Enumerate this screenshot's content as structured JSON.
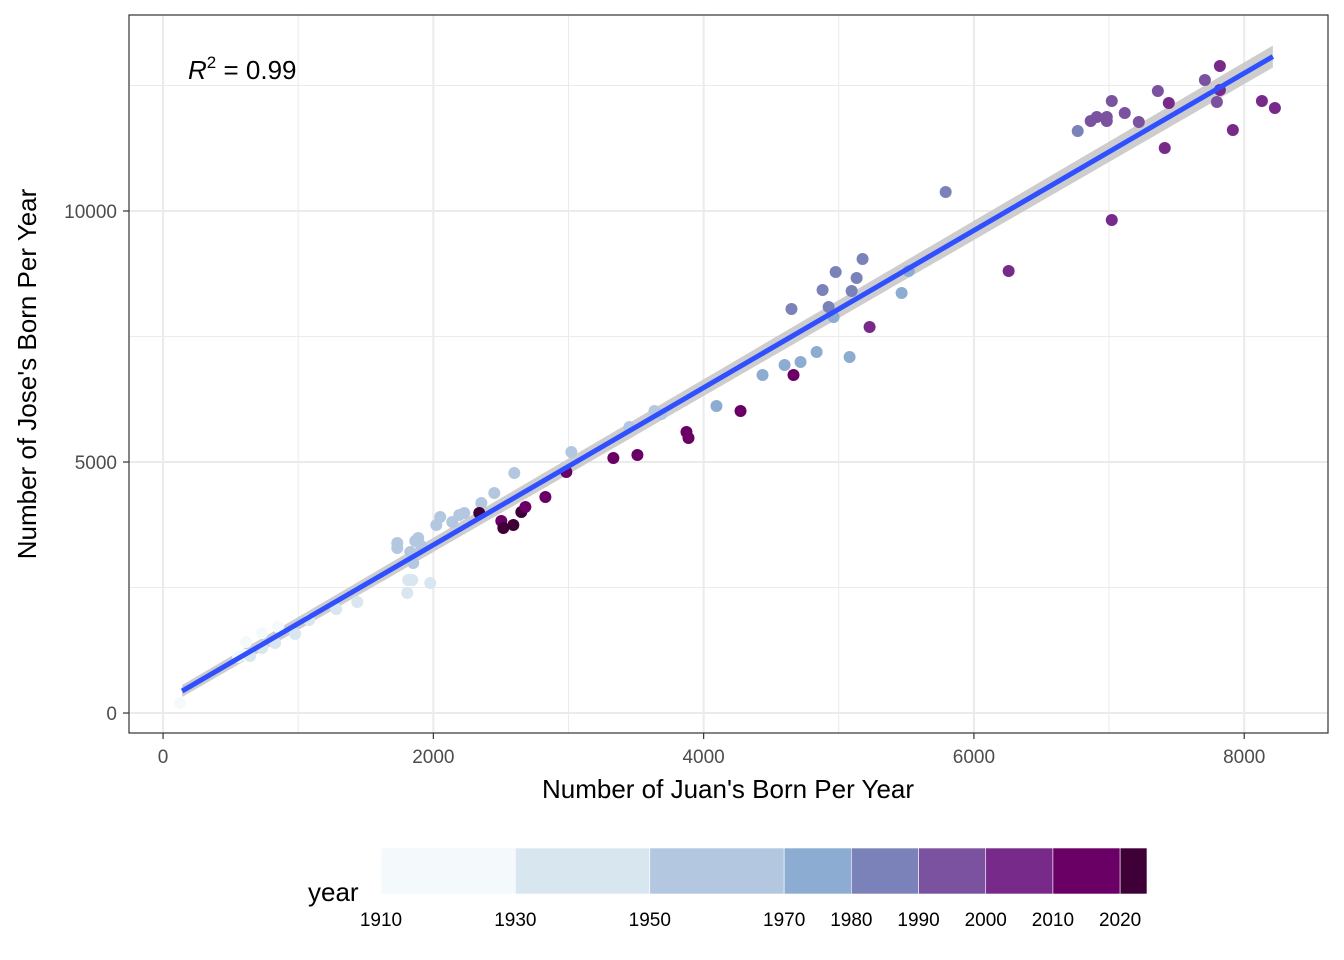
{
  "chart_data": {
    "type": "scatter",
    "title": "",
    "xlabel": "Number of Juan's Born Per Year",
    "ylabel": "Number of Jose's Born Per Year",
    "xlim": [
      -252,
      8620
    ],
    "ylim": [
      -398,
      13904
    ],
    "x_ticks": [
      0,
      2000,
      4000,
      6000,
      8000
    ],
    "y_ticks": [
      0,
      5000,
      10000
    ],
    "grid": true,
    "annotation": {
      "prefix": "R",
      "sup": "2",
      "text": " = 0.99"
    },
    "regression": {
      "intercept": 217,
      "slope": 1.566,
      "x_from": 141,
      "x_to": 8212,
      "color": "#3050ff",
      "ci_color": "#c8c8c8"
    },
    "legend": {
      "title": "year",
      "placement": "bottom",
      "breaks": [
        1910,
        1930,
        1950,
        1970,
        1980,
        1990,
        2000,
        2010,
        2020
      ],
      "max": 2024,
      "colors": [
        "#f4f9fc",
        "#d8e6f0",
        "#b3c8e0",
        "#8cadd1",
        "#7b82ba",
        "#7b52a0",
        "#772a8a",
        "#6a0065",
        "#3f0038"
      ]
    },
    "points": [
      {
        "x": 126,
        "y": 199,
        "year": 1915
      },
      {
        "x": 555,
        "y": 1116,
        "year": 1925
      },
      {
        "x": 607,
        "y": 1155,
        "year": 1925
      },
      {
        "x": 644,
        "y": 1135,
        "year": 1932
      },
      {
        "x": 615,
        "y": 1414,
        "year": 1920
      },
      {
        "x": 733,
        "y": 1295,
        "year": 1935
      },
      {
        "x": 733,
        "y": 1594,
        "year": 1920
      },
      {
        "x": 829,
        "y": 1394,
        "year": 1935
      },
      {
        "x": 852,
        "y": 1713,
        "year": 1920
      },
      {
        "x": 977,
        "y": 1574,
        "year": 1935
      },
      {
        "x": 1081,
        "y": 1853,
        "year": 1935
      },
      {
        "x": 1281,
        "y": 2072,
        "year": 1935
      },
      {
        "x": 1437,
        "y": 2211,
        "year": 1935
      },
      {
        "x": 1807,
        "y": 2390,
        "year": 1935
      },
      {
        "x": 1977,
        "y": 2590,
        "year": 1930
      },
      {
        "x": 1814,
        "y": 2650,
        "year": 1945
      },
      {
        "x": 1844,
        "y": 2650,
        "year": 1945
      },
      {
        "x": 1733,
        "y": 3287,
        "year": 1955
      },
      {
        "x": 1733,
        "y": 3386,
        "year": 1955
      },
      {
        "x": 1851,
        "y": 2988,
        "year": 1955
      },
      {
        "x": 1829,
        "y": 3207,
        "year": 1955
      },
      {
        "x": 1888,
        "y": 3486,
        "year": 1955
      },
      {
        "x": 1910,
        "y": 3327,
        "year": 1955
      },
      {
        "x": 1866,
        "y": 3426,
        "year": 1955
      },
      {
        "x": 2022,
        "y": 3745,
        "year": 1955
      },
      {
        "x": 2051,
        "y": 3904,
        "year": 1955
      },
      {
        "x": 2140,
        "y": 3805,
        "year": 1955
      },
      {
        "x": 2192,
        "y": 3944,
        "year": 1955
      },
      {
        "x": 2229,
        "y": 3984,
        "year": 1955
      },
      {
        "x": 2355,
        "y": 4183,
        "year": 1955
      },
      {
        "x": 2451,
        "y": 4382,
        "year": 1955
      },
      {
        "x": 2599,
        "y": 4781,
        "year": 1955
      },
      {
        "x": 3021,
        "y": 5199,
        "year": 1955
      },
      {
        "x": 3451,
        "y": 5697,
        "year": 1958
      },
      {
        "x": 3636,
        "y": 6016,
        "year": 1960
      },
      {
        "x": 3688,
        "y": 5956,
        "year": 1960
      },
      {
        "x": 2340,
        "y": 3984,
        "year": 2020
      },
      {
        "x": 2503,
        "y": 3825,
        "year": 2015
      },
      {
        "x": 2518,
        "y": 3685,
        "year": 2020
      },
      {
        "x": 2592,
        "y": 3745,
        "year": 2020
      },
      {
        "x": 2651,
        "y": 4004,
        "year": 2020
      },
      {
        "x": 2681,
        "y": 4104,
        "year": 2015
      },
      {
        "x": 2829,
        "y": 4303,
        "year": 2015
      },
      {
        "x": 2984,
        "y": 4801,
        "year": 2012
      },
      {
        "x": 3332,
        "y": 5080,
        "year": 2010
      },
      {
        "x": 3510,
        "y": 5139,
        "year": 2010
      },
      {
        "x": 3873,
        "y": 5598,
        "year": 2010
      },
      {
        "x": 3888,
        "y": 5478,
        "year": 2010
      },
      {
        "x": 4273,
        "y": 6016,
        "year": 2010
      },
      {
        "x": 4665,
        "y": 6733,
        "year": 2010
      },
      {
        "x": 5228,
        "y": 7689,
        "year": 2008
      },
      {
        "x": 6257,
        "y": 8805,
        "year": 2005
      },
      {
        "x": 4095,
        "y": 6115,
        "year": 1972
      },
      {
        "x": 4436,
        "y": 6733,
        "year": 1972
      },
      {
        "x": 4599,
        "y": 6932,
        "year": 1972
      },
      {
        "x": 4717,
        "y": 6992,
        "year": 1975
      },
      {
        "x": 4836,
        "y": 7191,
        "year": 1975
      },
      {
        "x": 5080,
        "y": 7092,
        "year": 1975
      },
      {
        "x": 4650,
        "y": 8048,
        "year": 1982
      },
      {
        "x": 4880,
        "y": 8426,
        "year": 1982
      },
      {
        "x": 4925,
        "y": 8088,
        "year": 1982
      },
      {
        "x": 4962,
        "y": 7888,
        "year": 1975
      },
      {
        "x": 4977,
        "y": 8785,
        "year": 1982
      },
      {
        "x": 5095,
        "y": 8407,
        "year": 1982
      },
      {
        "x": 5132,
        "y": 8665,
        "year": 1982
      },
      {
        "x": 5176,
        "y": 9044,
        "year": 1982
      },
      {
        "x": 5465,
        "y": 8367,
        "year": 1975
      },
      {
        "x": 5517,
        "y": 8805,
        "year": 1975
      },
      {
        "x": 5791,
        "y": 10378,
        "year": 1985
      },
      {
        "x": 6768,
        "y": 11593,
        "year": 1985
      },
      {
        "x": 6864,
        "y": 11792,
        "year": 1992
      },
      {
        "x": 6909,
        "y": 11872,
        "year": 1992
      },
      {
        "x": 6983,
        "y": 11792,
        "year": 1992
      },
      {
        "x": 6983,
        "y": 11872,
        "year": 1992
      },
      {
        "x": 7020,
        "y": 12191,
        "year": 1992
      },
      {
        "x": 7116,
        "y": 11952,
        "year": 1993
      },
      {
        "x": 7220,
        "y": 11772,
        "year": 1995
      },
      {
        "x": 7361,
        "y": 12390,
        "year": 1995
      },
      {
        "x": 7442,
        "y": 12151,
        "year": 2005
      },
      {
        "x": 7412,
        "y": 11255,
        "year": 2005
      },
      {
        "x": 7020,
        "y": 9821,
        "year": 2005
      },
      {
        "x": 7709,
        "y": 12609,
        "year": 1995
      },
      {
        "x": 7798,
        "y": 12171,
        "year": 1995
      },
      {
        "x": 7820,
        "y": 12888,
        "year": 2005
      },
      {
        "x": 7820,
        "y": 12410,
        "year": 2002
      },
      {
        "x": 7916,
        "y": 11613,
        "year": 2005
      },
      {
        "x": 8131,
        "y": 12191,
        "year": 2005
      },
      {
        "x": 8227,
        "y": 12051,
        "year": 2005
      }
    ]
  }
}
